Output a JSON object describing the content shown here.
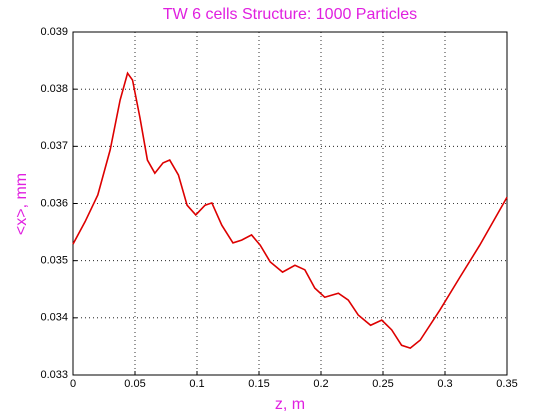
{
  "chart_data": {
    "type": "line",
    "title": "TW 6 cells Structure: 1000 Particles",
    "xlabel": "z, m",
    "ylabel": "<x>, mm",
    "x": [
      0,
      0.0097,
      0.02,
      0.03,
      0.038,
      0.044,
      0.048,
      0.054,
      0.06,
      0.066,
      0.0726,
      0.078,
      0.085,
      0.092,
      0.099,
      0.1065,
      0.112,
      0.12,
      0.129,
      0.136,
      0.144,
      0.151,
      0.159,
      0.169,
      0.179,
      0.187,
      0.195,
      0.203,
      0.214,
      0.222,
      0.23,
      0.24,
      0.249,
      0.257,
      0.265,
      0.272,
      0.28,
      0.296,
      0.312,
      0.328,
      0.35
    ],
    "series": [
      {
        "name": "<x>",
        "color": "#dd0000",
        "values": [
          0.03529,
          0.03568,
          0.03615,
          0.03694,
          0.03781,
          0.03828,
          0.03816,
          0.0375,
          0.03676,
          0.03653,
          0.03671,
          0.03676,
          0.0365,
          0.03597,
          0.0358,
          0.03597,
          0.03601,
          0.03562,
          0.03531,
          0.03536,
          0.03545,
          0.03527,
          0.03498,
          0.0348,
          0.03492,
          0.03484,
          0.03452,
          0.03436,
          0.03443,
          0.03431,
          0.03405,
          0.03387,
          0.03396,
          0.03379,
          0.03352,
          0.03347,
          0.03361,
          0.03414,
          0.03471,
          0.03527,
          0.03611
        ]
      }
    ],
    "xlim": [
      0,
      0.35
    ],
    "xticks": [
      0,
      0.05,
      0.1,
      0.15,
      0.2,
      0.25,
      0.3,
      0.35
    ],
    "ylim": [
      0.033,
      0.039
    ],
    "yticks": [
      0.033,
      0.034,
      0.035,
      0.036,
      0.037,
      0.038,
      0.039
    ],
    "grid": true
  }
}
